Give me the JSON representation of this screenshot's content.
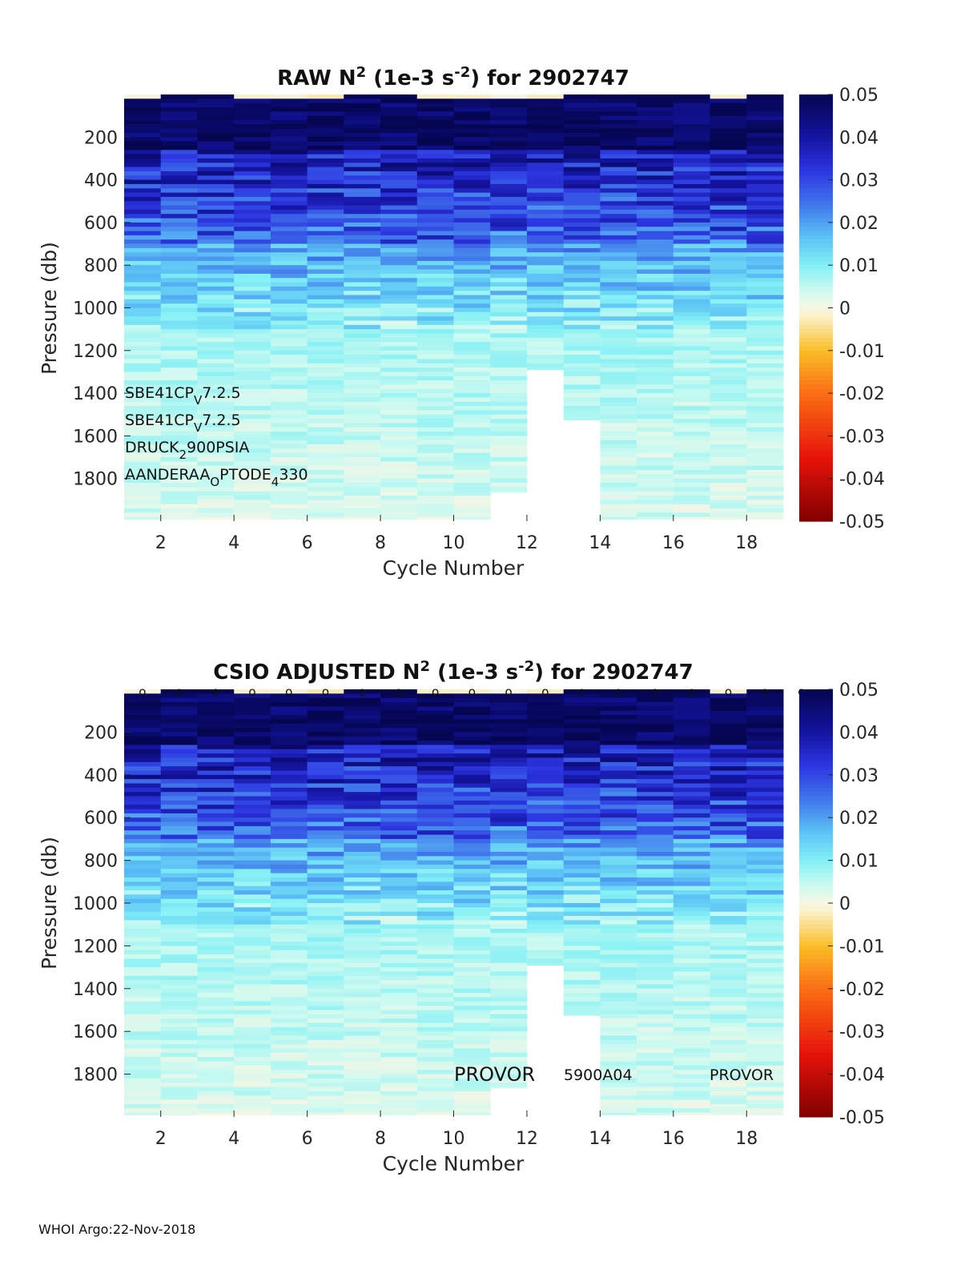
{
  "footer": "WHOI Argo:22-Nov-2018",
  "chart_data": [
    {
      "type": "heatmap",
      "id": "raw",
      "title": {
        "main": "RAW N",
        "sup1": "2",
        "mid": " (1e-3 s",
        "sup2": "-2",
        "tail": ") for 2902747"
      },
      "xlabel": "Cycle Number",
      "ylabel": "Pressure (db)",
      "xlim": [
        1,
        19
      ],
      "ylim": [
        2000,
        0
      ],
      "xticks": [
        "2",
        "4",
        "6",
        "8",
        "10",
        "12",
        "14",
        "16",
        "18"
      ],
      "yticks": [
        "200",
        "400",
        "600",
        "800",
        "1000",
        "1200",
        "1400",
        "1600",
        "1800"
      ],
      "colorbar": {
        "range": [
          -0.05,
          0.05
        ],
        "ticks": [
          "0.05",
          "0.04",
          "0.03",
          "0.02",
          "0.01",
          "0",
          "-0.01",
          "-0.02",
          "-0.03",
          "-0.04",
          "-0.05"
        ]
      },
      "cycles": [
        1,
        2,
        3,
        4,
        5,
        6,
        7,
        8,
        9,
        10,
        11,
        12,
        13,
        14,
        15,
        16,
        17,
        18
      ],
      "max_pressure": [
        1990,
        1990,
        1990,
        1990,
        1990,
        1990,
        1990,
        1990,
        1990,
        1990,
        1865,
        1290,
        1525,
        1990,
        1990,
        1990,
        1990,
        1990
      ],
      "profile": {
        "surface": 0.046,
        "thermocline_top": 250,
        "deep": 0.006
      },
      "sensors": [
        {
          "name": "SBE41CP",
          "sub": "V",
          "tail": "7.2.5"
        },
        {
          "name": "SBE41CP",
          "sub": "V",
          "tail": "7.2.5"
        },
        {
          "name": "DRUCK",
          "sub": "2",
          "tail": "900PSIA"
        },
        {
          "name": "AANDERAA",
          "sub": "O",
          "tail": "PTODE",
          "sub2": "4",
          "tail2": "330"
        }
      ]
    },
    {
      "type": "heatmap",
      "id": "adjusted",
      "title": {
        "main": "CSIO  ADJUSTED N",
        "sup1": "2",
        "mid": " (1e-3 s",
        "sup2": "-2",
        "tail": ") for 2902747"
      },
      "xlabel": "Cycle Number",
      "ylabel": "Pressure (db)",
      "xlim": [
        1,
        19
      ],
      "ylim": [
        2000,
        0
      ],
      "xticks": [
        "2",
        "4",
        "6",
        "8",
        "10",
        "12",
        "14",
        "16",
        "18"
      ],
      "yticks": [
        "200",
        "400",
        "600",
        "800",
        "1000",
        "1200",
        "1400",
        "1600",
        "1800"
      ],
      "colorbar": {
        "range": [
          -0.05,
          0.05
        ],
        "ticks": [
          "0.05",
          "0.04",
          "0.03",
          "0.02",
          "0.01",
          "0",
          "-0.01",
          "-0.02",
          "-0.03",
          "-0.04",
          "-0.05"
        ]
      },
      "cycles": [
        1,
        2,
        3,
        4,
        5,
        6,
        7,
        8,
        9,
        10,
        11,
        12,
        13,
        14,
        15,
        16,
        17,
        18
      ],
      "max_pressure": [
        1990,
        1990,
        1990,
        1990,
        1990,
        1990,
        1990,
        1990,
        1990,
        1990,
        1865,
        1290,
        1525,
        1990,
        1990,
        1990,
        1990,
        1990
      ],
      "qc_marker": "o",
      "float_labels": [
        "PROVOR",
        "5900A04",
        "PROVOR"
      ]
    }
  ]
}
